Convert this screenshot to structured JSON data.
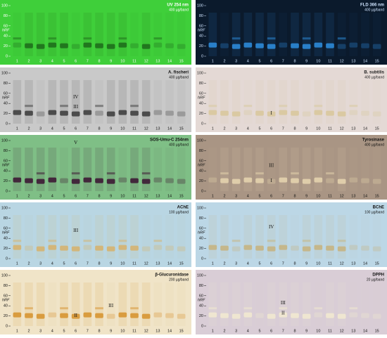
{
  "figure": {
    "axis_label": "hRF",
    "ticks": [
      0,
      20,
      40,
      60,
      80,
      100
    ],
    "lanes": [
      "1",
      "2",
      "3",
      "4",
      "5",
      "6",
      "7",
      "8",
      "9",
      "10",
      "11",
      "12",
      "13",
      "14",
      "15"
    ],
    "panels": [
      {
        "title": "UV 254 nm",
        "subtitle": "400 µg/band",
        "bg": "#3fcf3a",
        "band": "#1d6a1a",
        "text": "#ffffff",
        "annotations": []
      },
      {
        "title": "FLD 366 nm",
        "subtitle": "400 µg/band",
        "bg": "#0b1a2c",
        "band": "#2e8fe0",
        "text": "#cfe4ff",
        "annotations": []
      },
      {
        "title": "A. fischeri",
        "subtitle": "400 µg/band",
        "bg": "#c9c9c9",
        "band": "#3a3a3a",
        "text": "#111111",
        "annotations": [
          "IV",
          "III"
        ]
      },
      {
        "title": "B. subtilis",
        "subtitle": "400 µg/band",
        "bg": "#e4d9d5",
        "band": "#d8c79a",
        "text": "#222222",
        "annotations": [
          "I"
        ]
      },
      {
        "title": "SOS-Umu-C 254nm",
        "subtitle": "400 µg/band",
        "bg": "#7fbf86",
        "band": "#3a1030",
        "text": "#111111",
        "annotations": [
          "V"
        ]
      },
      {
        "title": "Tyrosinase",
        "subtitle": "400 µg/band",
        "bg": "#a99584",
        "band": "#e8d6b0",
        "text": "#111111",
        "annotations": [
          "III",
          "I"
        ]
      },
      {
        "title": "AChE",
        "subtitle": "100 µg/band",
        "bg": "#b9d6e3",
        "band": "#d7b26a",
        "text": "#111111",
        "annotations": [
          "III"
        ]
      },
      {
        "title": "BChE",
        "subtitle": "100 µg/band",
        "bg": "#bcd7e6",
        "band": "#c7b37c",
        "text": "#111111",
        "annotations": [
          "IV"
        ]
      },
      {
        "title": "β-Glucuronidase",
        "subtitle": "200 µg/band",
        "bg": "#f0e4c8",
        "band": "#d6902a",
        "text": "#111111",
        "annotations": [
          "II",
          "III"
        ]
      },
      {
        "title": "DPPH",
        "subtitle": "20 µg/band",
        "bg": "#d9cdd6",
        "band": "#f2ead0",
        "text": "#111111",
        "annotations": [
          "III",
          "II"
        ]
      }
    ]
  }
}
